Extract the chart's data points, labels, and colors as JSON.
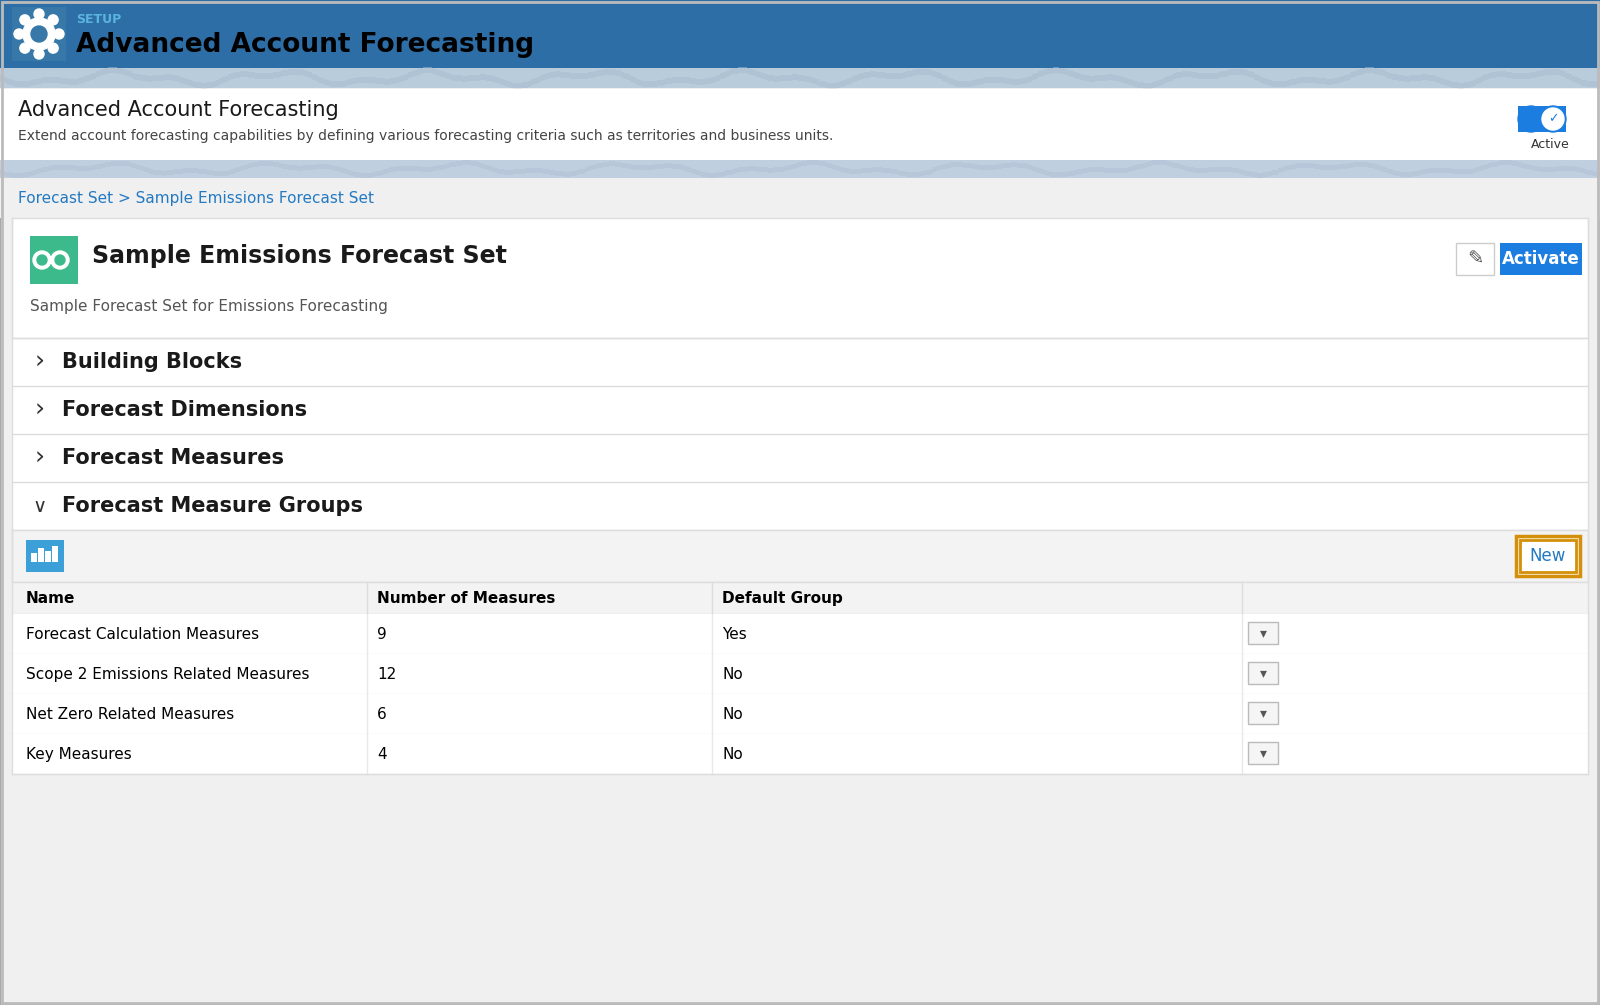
{
  "bg_color": "#f0f0f0",
  "header_bg": "#2e6ea6",
  "header_text_setup": "SETUP",
  "header_text_title": "Advanced Account Forecasting",
  "wave_bar_color1": "#b8ccdc",
  "wave_bar_color2": "#c8d8e8",
  "feature_title": "Advanced Account Forecasting",
  "feature_desc": "Extend account forecasting capabilities by defining various forecasting criteria such as territories and business units.",
  "active_label": "Active",
  "breadcrumb": "Forecast Set > Sample Emissions Forecast Set",
  "breadcrumb_color": "#2379c2",
  "card_title": "Sample Emissions Forecast Set",
  "card_subtitle": "Sample Forecast Set for Emissions Forecasting",
  "activate_btn_color": "#1b7de0",
  "activate_btn_text": "Activate",
  "sections": [
    {
      "label": "Building Blocks",
      "expanded": false
    },
    {
      "label": "Forecast Dimensions",
      "expanded": false
    },
    {
      "label": "Forecast Measures",
      "expanded": false
    },
    {
      "label": "Forecast Measure Groups",
      "expanded": true
    }
  ],
  "table_headers": [
    "Name",
    "Number of Measures",
    "Default Group"
  ],
  "table_rows": [
    [
      "Forecast Calculation Measures",
      "9",
      "Yes"
    ],
    [
      "Scope 2 Emissions Related Measures",
      "12",
      "No"
    ],
    [
      "Net Zero Related Measures",
      "6",
      "No"
    ],
    [
      "Key Measures",
      "4",
      "No"
    ]
  ],
  "new_btn_text": "New",
  "new_btn_border": "#d4900a",
  "icon_bg": "#3d9fd8",
  "toggle_color": "#1b7de0",
  "gear_bg": "#3878a8",
  "white": "#ffffff",
  "separator": "#dddddd",
  "text_dark": "#1a1a1a",
  "text_mid": "#444444",
  "text_light": "#888888"
}
